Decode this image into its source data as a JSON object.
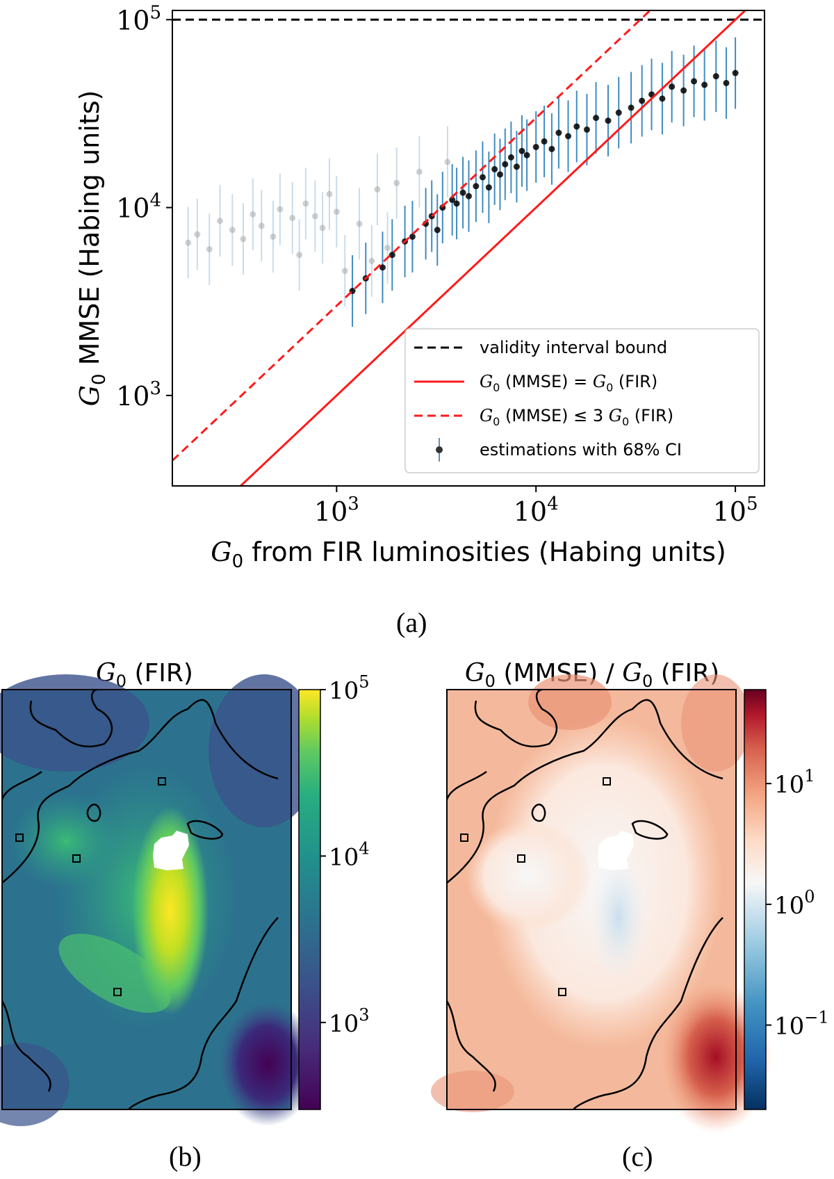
{
  "chart_data": [
    {
      "type": "scatter",
      "panel": "a",
      "xlabel": "G0 from FIR luminosities (Habing units)",
      "ylabel": "G0 MMSE (Habing units)",
      "xscale": "log",
      "yscale": "log",
      "xlim": [
        150,
        140000
      ],
      "ylim": [
        330,
        112000
      ],
      "xticks": [
        {
          "value": 1000,
          "base": "10",
          "exp": "3"
        },
        {
          "value": 10000,
          "base": "10",
          "exp": "4"
        },
        {
          "value": 100000,
          "base": "10",
          "exp": "5"
        }
      ],
      "yticks": [
        {
          "value": 1000,
          "base": "10",
          "exp": "3"
        },
        {
          "value": 10000,
          "base": "10",
          "exp": "4"
        },
        {
          "value": 100000,
          "base": "10",
          "exp": "5"
        }
      ],
      "lines": [
        {
          "name": "validity interval bound",
          "style": "dashed",
          "color": "#000000",
          "y": 100000
        },
        {
          "name": "G0 (MMSE) = G0 (FIR)",
          "style": "solid",
          "color": "#ff1a1a",
          "factor": 1
        },
        {
          "name": "G0 (MMSE) ≤ 3 G0 (FIR)",
          "style": "dashed",
          "color": "#ff1a1a",
          "factor": 3
        }
      ],
      "legend": {
        "position": "lower-right",
        "items": [
          {
            "kind": "dashed-black",
            "text": "validity interval bound"
          },
          {
            "kind": "solid-red",
            "g": "G",
            "sub": "0",
            "text": " (MMSE) = ",
            "g2": "G",
            "sub2": "0",
            "text2": " (FIR)"
          },
          {
            "kind": "dashed-red",
            "g": "G",
            "sub": "0",
            "text": " (MMSE) ≤ 3 ",
            "g2": "G",
            "sub2": "0",
            "text2": " (FIR)"
          },
          {
            "kind": "errorbar",
            "text": "estimations with 68% CI"
          }
        ]
      },
      "series": [
        {
          "name": "estimations with 68% CI",
          "color": "#1f77b4",
          "marker_color": "#000000",
          "points": [
            [
              180,
              6500
            ],
            [
              200,
              7200
            ],
            [
              230,
              6000
            ],
            [
              260,
              8500
            ],
            [
              300,
              7600
            ],
            [
              340,
              6800
            ],
            [
              380,
              9200
            ],
            [
              420,
              8000
            ],
            [
              480,
              7000
            ],
            [
              520,
              9800
            ],
            [
              600,
              8800
            ],
            [
              650,
              5600
            ],
            [
              700,
              10500
            ],
            [
              780,
              9000
            ],
            [
              850,
              7800
            ],
            [
              920,
              11800
            ],
            [
              1000,
              9500
            ],
            [
              1100,
              4600
            ],
            [
              1200,
              3600
            ],
            [
              1300,
              8200
            ],
            [
              1400,
              4200
            ],
            [
              1500,
              5200
            ],
            [
              1600,
              12500
            ],
            [
              1700,
              4800
            ],
            [
              1800,
              6100
            ],
            [
              1900,
              5600
            ],
            [
              2000,
              13500
            ],
            [
              2200,
              6600
            ],
            [
              2400,
              7000
            ],
            [
              2600,
              15500
            ],
            [
              2800,
              8200
            ],
            [
              3000,
              9000
            ],
            [
              3200,
              7600
            ],
            [
              3400,
              10000
            ],
            [
              3600,
              17500
            ],
            [
              3800,
              11000
            ],
            [
              4000,
              10500
            ],
            [
              4300,
              12000
            ],
            [
              4600,
              11500
            ],
            [
              5000,
              13000
            ],
            [
              5400,
              14500
            ],
            [
              5800,
              12800
            ],
            [
              6200,
              16000
            ],
            [
              6600,
              15000
            ],
            [
              7000,
              17000
            ],
            [
              7500,
              18500
            ],
            [
              8000,
              16500
            ],
            [
              8500,
              20000
            ],
            [
              9000,
              19000
            ],
            [
              10000,
              21000
            ],
            [
              11000,
              22500
            ],
            [
              12000,
              20500
            ],
            [
              13000,
              25000
            ],
            [
              14500,
              24000
            ],
            [
              16000,
              27000
            ],
            [
              18000,
              26000
            ],
            [
              20000,
              30000
            ],
            [
              23000,
              29000
            ],
            [
              26000,
              32000
            ],
            [
              30000,
              34000
            ],
            [
              34000,
              37000
            ],
            [
              38000,
              40000
            ],
            [
              43000,
              38000
            ],
            [
              48000,
              44000
            ],
            [
              55000,
              42000
            ],
            [
              62000,
              47000
            ],
            [
              70000,
              45000
            ],
            [
              80000,
              50000
            ],
            [
              90000,
              46000
            ],
            [
              100000,
              52000
            ]
          ]
        }
      ]
    },
    {
      "type": "heatmap",
      "panel": "b",
      "title": "G0 (FIR)",
      "title_g": "G",
      "title_sub": "0",
      "title_rest": " (FIR)",
      "colormap": "viridis",
      "colorbar": {
        "scale": "log",
        "range": [
          300,
          100000
        ],
        "ticks": [
          {
            "value": 1000,
            "base": "10",
            "exp": "3"
          },
          {
            "value": 10000,
            "base": "10",
            "exp": "4"
          },
          {
            "value": 100000,
            "base": "10",
            "exp": "5"
          }
        ]
      }
    },
    {
      "type": "heatmap",
      "panel": "c",
      "title": "G0 (MMSE) / G0 (FIR)",
      "title_g": "G",
      "title_sub": "0",
      "title_rest": " (MMSE) / ",
      "title_g2": "G",
      "title_sub2": "0",
      "title_rest2": " (FIR)",
      "colormap": "RdBu_r",
      "colorbar": {
        "scale": "log",
        "range": [
          0.02,
          60
        ],
        "ticks": [
          {
            "value": 0.1,
            "base": "10",
            "exp": "−1"
          },
          {
            "value": 1,
            "base": "10",
            "exp": "0"
          },
          {
            "value": 10,
            "base": "10",
            "exp": "1"
          }
        ]
      }
    }
  ],
  "axis_label_text": {
    "y_g": "G",
    "y_sub": "0",
    "y_rest": " MMSE (Habing units)",
    "x_g": "G",
    "x_sub": "0",
    "x_rest": " from FIR luminosities (Habing units)"
  },
  "captions": {
    "a": "(a)",
    "b": "(b)",
    "c": "(c)"
  }
}
